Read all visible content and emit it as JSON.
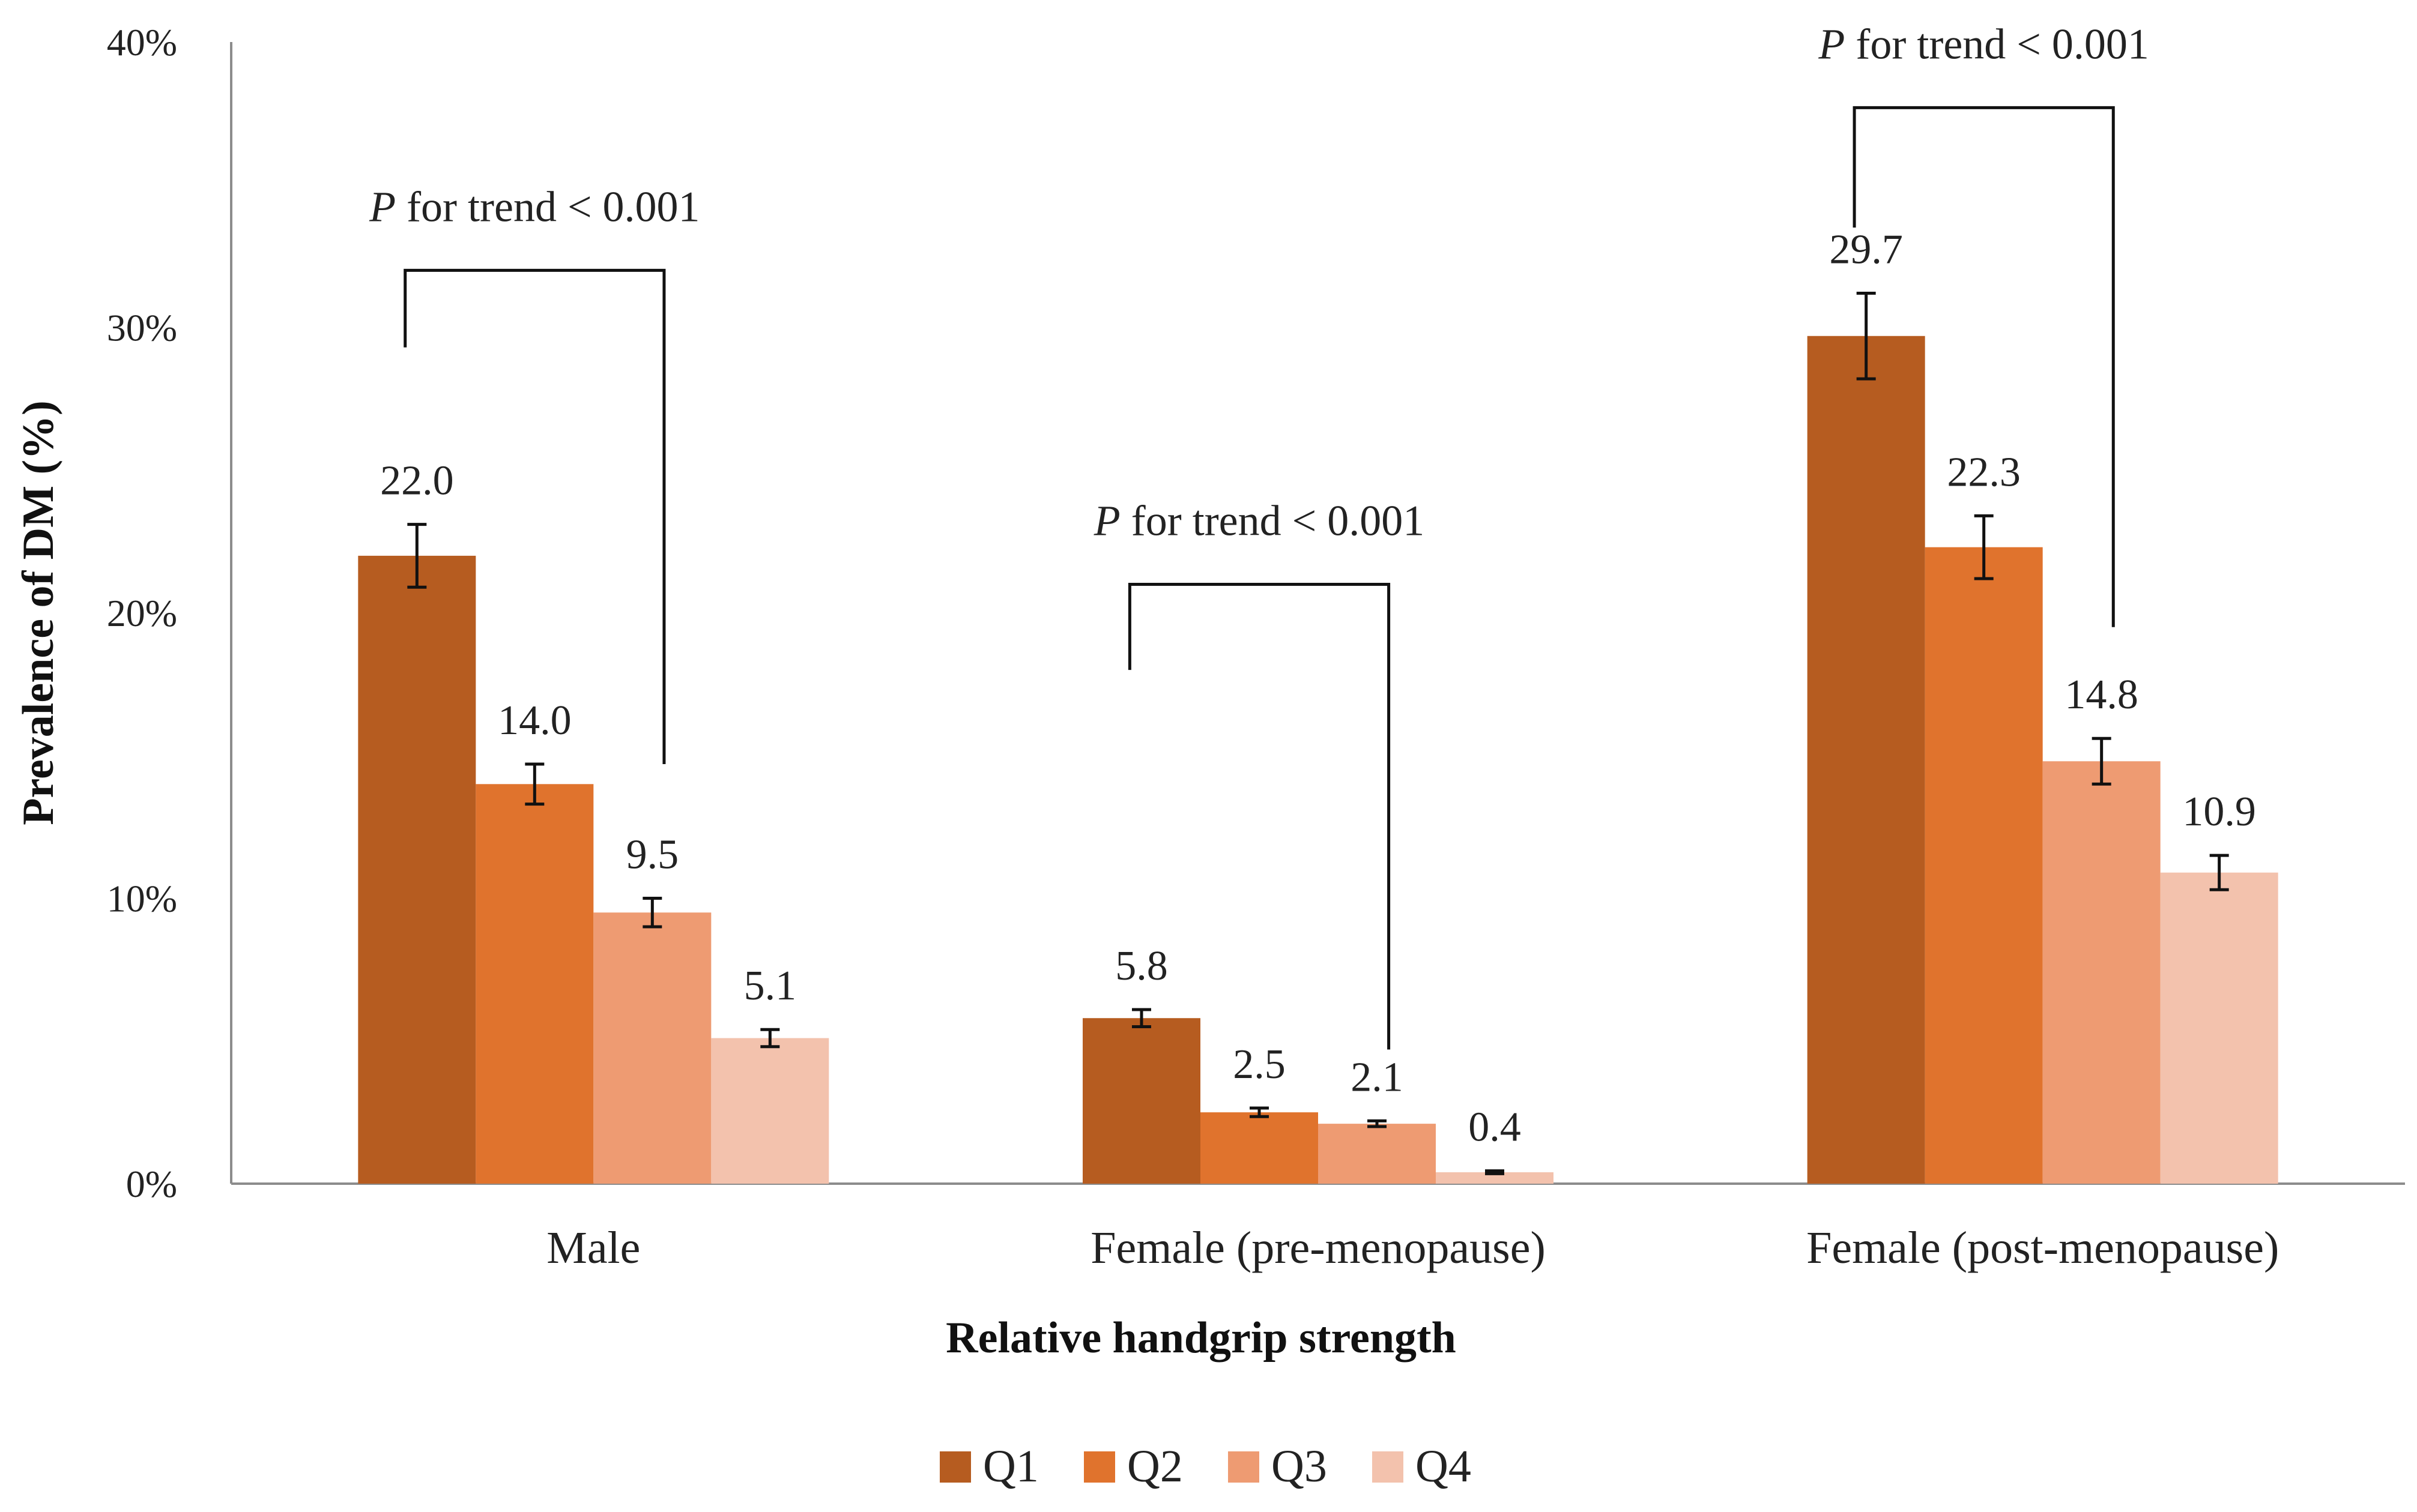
{
  "chart_data": {
    "type": "bar",
    "title": "",
    "xlabel": "Relative handgrip strength",
    "ylabel": "Prevalence of  DM (%)",
    "ylim": [
      0,
      40
    ],
    "yticks": [
      0,
      10,
      20,
      30,
      40
    ],
    "ytick_labels": [
      "0%",
      "10%",
      "20%",
      "30%",
      "40%"
    ],
    "categories": [
      "Male",
      "Female (pre-menopause)",
      "Female (post-menopause)"
    ],
    "series": [
      {
        "name": "Q1",
        "color": "#B65C20",
        "values": [
          22.0,
          5.8,
          29.7
        ],
        "labels": [
          "22.0",
          "5.8",
          "29.7"
        ],
        "error": [
          1.1,
          0.3,
          1.5
        ]
      },
      {
        "name": "Q2",
        "color": "#E0732D",
        "values": [
          14.0,
          2.5,
          22.3
        ],
        "labels": [
          "14.0",
          "2.5",
          "22.3"
        ],
        "error": [
          0.7,
          0.15,
          1.1
        ]
      },
      {
        "name": "Q3",
        "color": "#EE9B72",
        "values": [
          9.5,
          2.1,
          14.8
        ],
        "labels": [
          "9.5",
          "2.1",
          "14.8"
        ],
        "error": [
          0.5,
          0.1,
          0.8
        ]
      },
      {
        "name": "Q4",
        "color": "#F3C2AD",
        "values": [
          5.1,
          0.4,
          10.9
        ],
        "labels": [
          "5.1",
          "0.4",
          "10.9"
        ],
        "error": [
          0.3,
          0.05,
          0.6
        ]
      }
    ],
    "trend_annotations": [
      {
        "p": "P",
        "text": " for trend < 0.001",
        "category": "Male",
        "bracket_y": 32,
        "left_end": 29.3,
        "right_end": 14.7
      },
      {
        "p": "P",
        "text": " for trend < 0.001",
        "category": "Female (pre-menopause)",
        "bracket_y": 21,
        "left_end": 18.0,
        "right_end": 4.7
      },
      {
        "p": "P",
        "text": " for trend < 0.001",
        "category": "Female (post-menopause)",
        "bracket_y": 37.7,
        "left_end": 33.5,
        "right_end": 19.5
      }
    ],
    "legend_position": "bottom-center",
    "grid": false
  }
}
